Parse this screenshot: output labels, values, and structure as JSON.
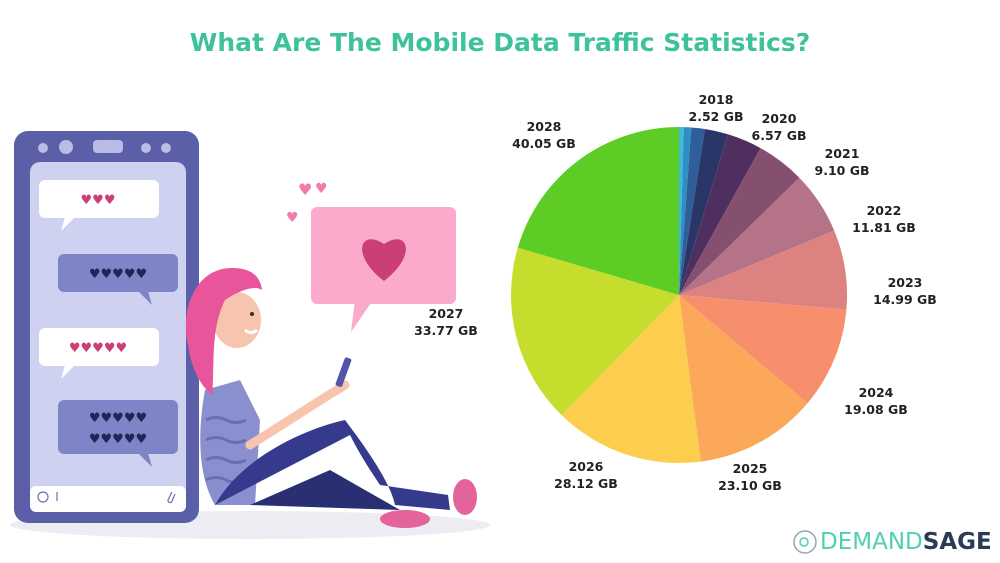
{
  "title": "What Are The Mobile Data Traffic Statistics?",
  "chart_data": {
    "type": "pie",
    "title": "What Are The Mobile Data Traffic Statistics?",
    "unit": "GB",
    "slices": [
      {
        "label": "",
        "value_text": "",
        "value": 0.9,
        "color": "#3dbbd9"
      },
      {
        "label": "",
        "value_text": "",
        "value": 1.4,
        "color": "#2f8fc2"
      },
      {
        "label": "2018",
        "value_text": "2.52 GB",
        "value": 2.52,
        "color": "#2e5f9a"
      },
      {
        "label": "",
        "value_text": "",
        "value": 4.4,
        "color": "#2b3668"
      },
      {
        "label": "2020",
        "value_text": "6.57 GB",
        "value": 6.57,
        "color": "#4e2f60"
      },
      {
        "label": "2021",
        "value_text": "9.10 GB",
        "value": 9.1,
        "color": "#85506f"
      },
      {
        "label": "2022",
        "value_text": "11.81 GB",
        "value": 11.81,
        "color": "#b47386"
      },
      {
        "label": "2023",
        "value_text": "14.99 GB",
        "value": 14.99,
        "color": "#dc8280"
      },
      {
        "label": "2024",
        "value_text": "19.08 GB",
        "value": 19.08,
        "color": "#f78f6d"
      },
      {
        "label": "2025",
        "value_text": "23.10 GB",
        "value": 23.1,
        "color": "#fba85a"
      },
      {
        "label": "2026",
        "value_text": "28.12 GB",
        "value": 28.12,
        "color": "#fdce4e"
      },
      {
        "label": "2027",
        "value_text": "33.77 GB",
        "value": 33.77,
        "color": "#c6dd2e"
      },
      {
        "label": "2028",
        "value_text": "40.05 GB",
        "value": 40.05,
        "color": "#5dcc24"
      }
    ],
    "legend": "none"
  },
  "brand": {
    "part1": "DEMAND",
    "part2": "SAGE"
  }
}
